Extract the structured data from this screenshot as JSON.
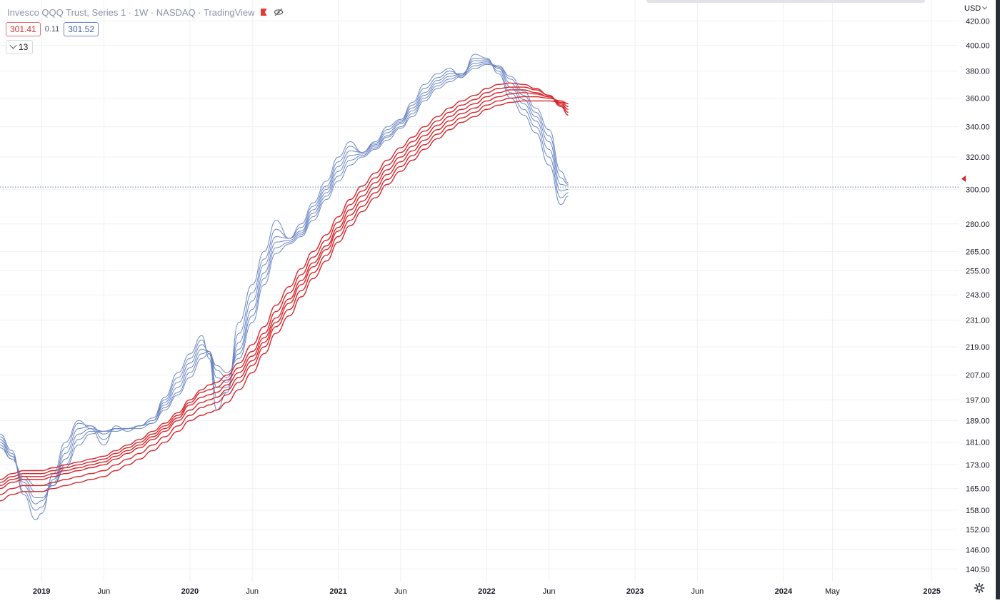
{
  "header": {
    "symbol_line": "Invesco QQQ Trust, Series 1 · 1W · NASDAQ · TradingView",
    "values": {
      "red_value": "301.41",
      "mid_value": "0.11",
      "blue_value": "301.52"
    },
    "indicator_toggle_label": "13",
    "currency_label": "USD"
  },
  "colors": {
    "short_group": "#6b86c4",
    "long_group": "#d9262b",
    "grid": "#eef0f3",
    "price_line": "#6b7b9a",
    "text": "#131722"
  },
  "chart_data": {
    "type": "line",
    "title": "Invesco QQQ Trust, Series 1 · 1W · NASDAQ · TradingView",
    "y_scale": "log",
    "x_range": [
      2018.72,
      2025.18
    ],
    "ylim": [
      137,
      438
    ],
    "grid": true,
    "current_price": 301.41,
    "y_ticks": [
      420,
      400,
      380,
      360,
      340,
      320,
      300,
      280,
      265,
      255,
      243,
      231,
      219,
      207,
      197,
      189,
      181,
      173,
      165,
      158,
      152,
      146,
      140.5
    ],
    "y_tick_labels": [
      "420.00",
      "400.00",
      "380.00",
      "360.00",
      "340.00",
      "320.00",
      "300.00",
      "280.00",
      "265.00",
      "255.00",
      "243.00",
      "231.00",
      "219.00",
      "207.00",
      "197.00",
      "189.00",
      "181.00",
      "173.00",
      "165.00",
      "158.00",
      "152.00",
      "146.00",
      "140.50"
    ],
    "x_ticks": [
      2019.0,
      2019.42,
      2020.0,
      2020.42,
      2021.0,
      2021.42,
      2022.0,
      2022.42,
      2023.0,
      2023.42,
      2024.0,
      2024.33,
      2025.0
    ],
    "x_tick_labels": [
      "2019",
      "Jun",
      "2020",
      "Jun",
      "2021",
      "Jun",
      "2022",
      "Jun",
      "2023",
      "Jun",
      "2024",
      "May",
      "2025"
    ],
    "x": [
      2018.72,
      2018.8,
      2018.88,
      2018.96,
      2019.0,
      2019.08,
      2019.16,
      2019.25,
      2019.33,
      2019.42,
      2019.5,
      2019.58,
      2019.66,
      2019.75,
      2019.83,
      2019.92,
      2020.0,
      2020.08,
      2020.13,
      2020.18,
      2020.25,
      2020.33,
      2020.42,
      2020.5,
      2020.58,
      2020.67,
      2020.75,
      2020.83,
      2020.92,
      2021.0,
      2021.08,
      2021.16,
      2021.25,
      2021.33,
      2021.42,
      2021.5,
      2021.58,
      2021.67,
      2021.75,
      2021.83,
      2021.92,
      2022.0,
      2022.08,
      2022.16,
      2022.25,
      2022.33,
      2022.42,
      2022.5,
      2022.55
    ],
    "series": [
      {
        "group": "short",
        "values": [
          184,
          178,
          163,
          155,
          157,
          170,
          181,
          189,
          186,
          180,
          187,
          185,
          187,
          190,
          198,
          208,
          216,
          224,
          214,
          193,
          200,
          230,
          248,
          265,
          282,
          272,
          280,
          292,
          305,
          320,
          330,
          323,
          330,
          340,
          345,
          357,
          370,
          378,
          382,
          375,
          393,
          390,
          378,
          360,
          348,
          336,
          315,
          291,
          296
        ]
      },
      {
        "group": "short",
        "values": [
          183,
          177,
          164,
          158,
          159,
          168,
          179,
          188,
          187,
          182,
          186,
          186,
          187,
          189,
          197,
          206,
          214,
          222,
          216,
          198,
          200,
          225,
          244,
          261,
          277,
          272,
          278,
          290,
          302,
          317,
          327,
          323,
          329,
          338,
          344,
          355,
          367,
          375,
          380,
          377,
          390,
          389,
          380,
          364,
          352,
          340,
          320,
          295,
          298
        ]
      },
      {
        "group": "short",
        "values": [
          182,
          176,
          166,
          160,
          161,
          167,
          177,
          186,
          187,
          184,
          186,
          186,
          187,
          189,
          196,
          204,
          212,
          220,
          217,
          202,
          202,
          221,
          240,
          258,
          273,
          272,
          276,
          288,
          300,
          314,
          324,
          323,
          328,
          336,
          343,
          353,
          364,
          373,
          378,
          378,
          388,
          388,
          382,
          368,
          356,
          344,
          325,
          299,
          300
        ]
      },
      {
        "group": "short",
        "values": [
          181,
          176,
          167,
          162,
          162,
          166,
          175,
          184,
          186,
          185,
          186,
          186,
          187,
          189,
          195,
          202,
          210,
          218,
          217,
          206,
          204,
          218,
          236,
          254,
          270,
          271,
          275,
          286,
          298,
          311,
          321,
          322,
          327,
          334,
          342,
          351,
          362,
          371,
          376,
          378,
          386,
          387,
          383,
          371,
          359,
          347,
          330,
          303,
          302
        ]
      },
      {
        "group": "short",
        "values": [
          180,
          175,
          168,
          164,
          164,
          166,
          173,
          182,
          185,
          185,
          186,
          186,
          187,
          188,
          194,
          200,
          208,
          216,
          217,
          209,
          206,
          216,
          233,
          251,
          267,
          270,
          274,
          284,
          296,
          308,
          318,
          321,
          326,
          333,
          340,
          349,
          360,
          369,
          374,
          377,
          384,
          386,
          384,
          374,
          362,
          350,
          334,
          307,
          303
        ]
      },
      {
        "group": "short",
        "values": [
          179,
          175,
          169,
          166,
          166,
          166,
          172,
          180,
          184,
          185,
          185,
          186,
          186,
          188,
          193,
          199,
          206,
          214,
          216,
          211,
          208,
          214,
          230,
          248,
          264,
          269,
          273,
          282,
          294,
          305,
          315,
          320,
          325,
          331,
          339,
          347,
          358,
          367,
          372,
          376,
          382,
          385,
          384,
          376,
          365,
          353,
          338,
          311,
          304
        ]
      },
      {
        "group": "long",
        "values": [
          168,
          170,
          171,
          171,
          171,
          172,
          173,
          174,
          175,
          176,
          178,
          180,
          182,
          185,
          188,
          192,
          197,
          201,
          203,
          204,
          207,
          212,
          220,
          228,
          238,
          247,
          256,
          265,
          274,
          284,
          294,
          302,
          310,
          318,
          326,
          333,
          340,
          347,
          353,
          358,
          362,
          367,
          370,
          371,
          370,
          367,
          362,
          354,
          348
        ]
      },
      {
        "group": "long",
        "values": [
          167,
          169,
          170,
          170,
          170,
          171,
          172,
          173,
          174,
          175,
          177,
          179,
          181,
          184,
          187,
          191,
          196,
          200,
          201,
          202,
          205,
          210,
          217,
          225,
          235,
          244,
          253,
          262,
          271,
          281,
          291,
          299,
          307,
          315,
          323,
          330,
          337,
          344,
          350,
          355,
          359,
          364,
          367,
          368,
          368,
          366,
          362,
          355,
          350
        ]
      },
      {
        "group": "long",
        "values": [
          166,
          168,
          169,
          169,
          169,
          170,
          171,
          172,
          173,
          174,
          176,
          178,
          180,
          183,
          186,
          190,
          195,
          198,
          199,
          200,
          203,
          208,
          215,
          223,
          232,
          241,
          250,
          259,
          268,
          278,
          288,
          296,
          304,
          312,
          320,
          327,
          334,
          341,
          347,
          352,
          356,
          361,
          364,
          366,
          366,
          364,
          361,
          356,
          352
        ]
      },
      {
        "group": "long",
        "values": [
          165,
          167,
          168,
          168,
          168,
          169,
          170,
          171,
          172,
          173,
          175,
          177,
          179,
          182,
          185,
          189,
          193,
          196,
          197,
          198,
          201,
          206,
          213,
          221,
          230,
          239,
          248,
          257,
          266,
          276,
          285,
          293,
          301,
          309,
          317,
          324,
          331,
          338,
          344,
          349,
          353,
          358,
          361,
          363,
          364,
          363,
          361,
          357,
          354
        ]
      },
      {
        "group": "long",
        "values": [
          163,
          165,
          166,
          166,
          166,
          167,
          168,
          169,
          170,
          171,
          173,
          175,
          177,
          180,
          183,
          187,
          191,
          194,
          195,
          196,
          199,
          204,
          211,
          219,
          228,
          236,
          245,
          254,
          263,
          273,
          282,
          290,
          298,
          306,
          314,
          321,
          328,
          335,
          341,
          346,
          350,
          355,
          358,
          360,
          361,
          361,
          360,
          358,
          356
        ]
      },
      {
        "group": "long",
        "values": [
          161,
          163,
          164,
          164,
          164,
          165,
          166,
          167,
          168,
          169,
          171,
          173,
          175,
          178,
          181,
          185,
          189,
          191,
          192,
          193,
          196,
          201,
          208,
          216,
          225,
          233,
          242,
          251,
          260,
          270,
          279,
          287,
          295,
          303,
          311,
          318,
          325,
          332,
          338,
          343,
          347,
          352,
          355,
          357,
          358,
          358,
          358,
          357,
          356
        ]
      }
    ]
  }
}
